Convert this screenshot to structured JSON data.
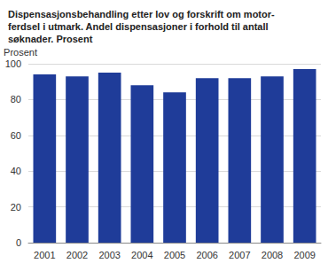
{
  "chart_data": {
    "type": "bar",
    "title": "Dispensasjonsbehandling etter lov og forskrift om motor-\nferdsel i utmark. Andel dispensasjoner i forhold til antall\nsøknader. Prosent",
    "y_label": "Prosent",
    "categories": [
      "2001",
      "2002",
      "2003",
      "2004",
      "2005",
      "2006",
      "2007",
      "2008",
      "2009"
    ],
    "values": [
      94,
      93,
      95,
      88,
      84,
      92,
      92,
      93,
      97
    ],
    "color": "#1f3c99",
    "ylim": [
      0,
      100
    ],
    "yticks": [
      0,
      20,
      40,
      60,
      80,
      100
    ],
    "grid": true
  }
}
